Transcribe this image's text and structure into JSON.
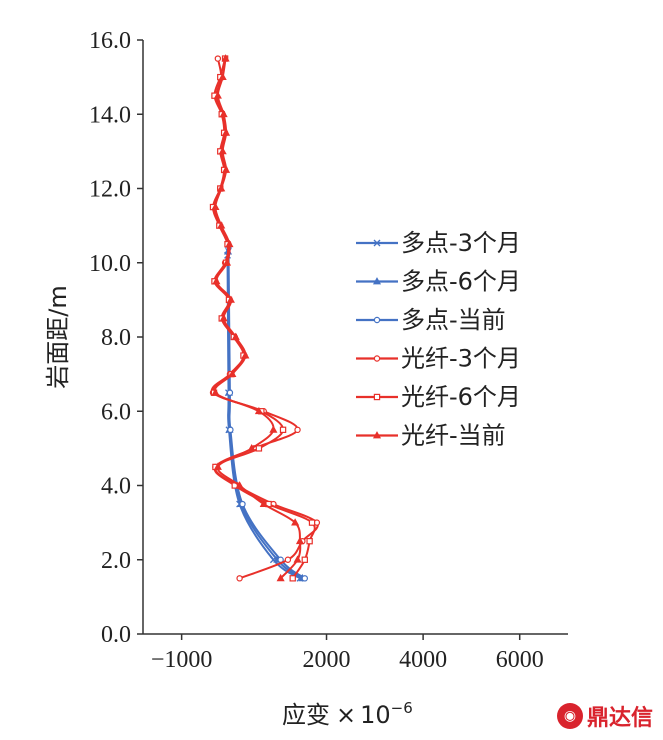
{
  "chart_data": {
    "type": "line",
    "xlabel_main": "应变",
    "xlabel_times": "×",
    "xlabel_base": "10",
    "xlabel_exp": "−6",
    "ylabel": "岩面距/m",
    "xlim": [
      -1800,
      7000
    ],
    "ylim": [
      0,
      16
    ],
    "x_ticks": [
      -1000,
      2000,
      4000,
      6000
    ],
    "x_tick_labels": [
      "−1000",
      "2000",
      "4000",
      "6000"
    ],
    "y_ticks": [
      0,
      2,
      4,
      6,
      8,
      10,
      12,
      14,
      16
    ],
    "y_tick_labels": [
      "0.0",
      "2.0",
      "4.0",
      "6.0",
      "8.0",
      "10.0",
      "12.0",
      "14.0",
      "16.0"
    ],
    "grid": false,
    "legend_position": "right",
    "series": [
      {
        "name": "多点-3个月",
        "color": "#4472c4",
        "marker": "x",
        "y": [
          1.5,
          2.0,
          3.5,
          5.5,
          6.5,
          10.2
        ],
        "x": [
          1450,
          900,
          200,
          -20,
          -30,
          -50
        ]
      },
      {
        "name": "多点-6个月",
        "color": "#4472c4",
        "marker": "triangle",
        "y": [
          1.5,
          2.0,
          3.5,
          5.5,
          6.5,
          10.3
        ],
        "x": [
          1500,
          980,
          230,
          -10,
          -20,
          -40
        ]
      },
      {
        "name": "多点-当前",
        "color": "#4472c4",
        "marker": "circle",
        "y": [
          1.5,
          2.0,
          3.5,
          5.5,
          6.5,
          10.4
        ],
        "x": [
          1550,
          1050,
          260,
          10,
          0,
          -30
        ]
      },
      {
        "name": "光纤-3个月",
        "color": "#e8302a",
        "marker": "circle",
        "y": [
          1.5,
          2.0,
          2.5,
          3.0,
          3.5,
          4.0,
          4.5,
          5.0,
          5.5,
          6.0,
          6.5,
          7.0,
          7.5,
          8.0,
          8.5,
          9.0,
          9.5,
          10.0,
          10.5,
          11.0,
          11.5,
          12.0,
          12.5,
          13.0,
          13.5,
          14.0,
          14.5,
          15.0,
          15.5
        ],
        "x": [
          200,
          1200,
          1500,
          1800,
          900,
          150,
          -300,
          500,
          1400,
          700,
          -350,
          0,
          300,
          100,
          -150,
          0,
          -300,
          -100,
          -30,
          -200,
          -330,
          -200,
          -100,
          -180,
          -100,
          -150,
          -280,
          -180,
          -250
        ]
      },
      {
        "name": "光纤-6个月",
        "color": "#e8302a",
        "marker": "square",
        "y": [
          1.5,
          2.0,
          2.5,
          3.0,
          3.5,
          4.0,
          4.5,
          5.0,
          5.5,
          6.0,
          6.5,
          7.0,
          7.5,
          8.0,
          8.5,
          9.0,
          9.5,
          10.0,
          10.5,
          11.0,
          11.5,
          12.0,
          12.5,
          13.0,
          13.5,
          14.0,
          14.5,
          15.0,
          15.5
        ],
        "x": [
          1300,
          1550,
          1650,
          1700,
          800,
          100,
          -300,
          600,
          1100,
          650,
          -330,
          30,
          280,
          80,
          -170,
          -20,
          -320,
          -80,
          -50,
          -220,
          -350,
          -200,
          -120,
          -200,
          -120,
          -170,
          -320,
          -200,
          -100
        ]
      },
      {
        "name": "光纤-当前",
        "color": "#e8302a",
        "marker": "triangle",
        "y": [
          1.5,
          2.0,
          2.5,
          3.0,
          3.5,
          4.0,
          4.5,
          5.0,
          5.5,
          6.0,
          6.5,
          7.0,
          7.5,
          8.0,
          8.5,
          9.0,
          9.5,
          10.0,
          10.5,
          11.0,
          11.5,
          12.0,
          12.5,
          13.0,
          13.5,
          14.0,
          14.5,
          15.0,
          15.5
        ],
        "x": [
          1050,
          1400,
          1450,
          1350,
          700,
          200,
          -250,
          450,
          900,
          600,
          -300,
          50,
          320,
          120,
          -130,
          20,
          -280,
          -60,
          -10,
          -180,
          -300,
          -180,
          -80,
          -150,
          -80,
          -130,
          -250,
          -150,
          -90
        ]
      }
    ]
  },
  "watermark": {
    "text": "鼎达信",
    "logo_color": "#d9232d"
  }
}
